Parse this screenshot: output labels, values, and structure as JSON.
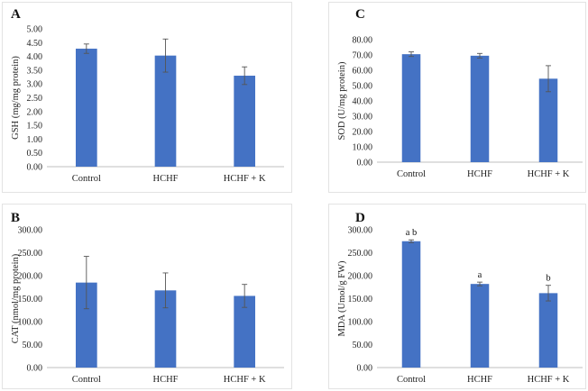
{
  "chart_data": [
    {
      "panel": "A",
      "type": "bar",
      "categories": [
        "Control",
        "HCHF",
        "HCHF + K"
      ],
      "values": [
        4.28,
        4.03,
        3.3
      ],
      "errors": [
        0.17,
        0.6,
        0.32
      ],
      "ylabel": "GSH (mg/mg protein)",
      "ylim": [
        0,
        5
      ],
      "yticks": [
        "0.00",
        "0.50",
        "1.00",
        "1.50",
        "2.00",
        "2.50",
        "3.00",
        "3.50",
        "4.00",
        "4.50",
        "5.00"
      ],
      "data_labels": [
        "",
        "",
        ""
      ],
      "grid": false
    },
    {
      "panel": "C",
      "type": "bar",
      "categories": [
        "Control",
        "HCHF",
        "HCHF + K"
      ],
      "values": [
        70.5,
        69.5,
        54.5
      ],
      "errors": [
        1.5,
        1.5,
        8.5
      ],
      "ylabel": "SOD (U/mg protein)",
      "ylim": [
        0,
        80
      ],
      "yticks": [
        "0.00",
        "10.00",
        "20.00",
        "30.00",
        "40.00",
        "50.00",
        "60.00",
        "70.00",
        "80.00"
      ],
      "data_labels": [
        "",
        "",
        ""
      ],
      "grid": false
    },
    {
      "panel": "B",
      "type": "bar",
      "categories": [
        "Control",
        "HCHF",
        "HCHF + K"
      ],
      "values": [
        185,
        168,
        156
      ],
      "errors": [
        57,
        38,
        25
      ],
      "ylabel": "CAT (nmol/mg protein)",
      "ylim": [
        0,
        300
      ],
      "yticks": [
        "0.00",
        "50.00",
        "100.00",
        "150.00",
        "200.00",
        "250.00",
        "300.00"
      ],
      "data_labels": [
        "",
        "",
        ""
      ],
      "grid": false
    },
    {
      "panel": "D",
      "type": "bar",
      "categories": [
        "Control",
        "HCHF",
        "HCHF + K"
      ],
      "values": [
        275,
        182,
        162
      ],
      "errors": [
        3,
        4,
        17
      ],
      "ylabel": "MDA (Umol/g FW)",
      "ylim": [
        0,
        300
      ],
      "yticks": [
        "0.00",
        "50.00",
        "100.00",
        "150.00",
        "200.00",
        "250.00",
        "300.00"
      ],
      "data_labels": [
        "a b",
        "a",
        "b"
      ],
      "grid": false
    }
  ],
  "colors": {
    "bar": "#4472c4",
    "axis": "#bfbfbf",
    "error": "#555555"
  }
}
